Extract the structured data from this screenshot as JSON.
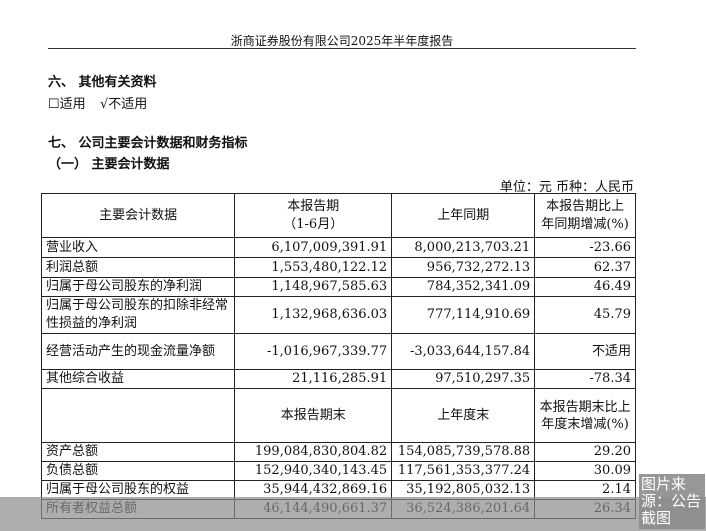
{
  "header": "浙商证券股份有限公司2025年半年度报告",
  "section6": {
    "title": "六、 其他有关资料",
    "opt1": "☐适用",
    "opt2": "√不适用"
  },
  "section7": {
    "title": "七、 公司主要会计数据和财务指标",
    "sub": "（一） 主要会计数据"
  },
  "unit": "单位：元  币种：人民币",
  "table1": {
    "headers": [
      "主要会计数据",
      "本报告期",
      "（1-6月）",
      "上年同期",
      "本报告期比上",
      "年同期增减(%)"
    ],
    "rows": [
      [
        "营业收入",
        "6,107,009,391.91",
        "8,000,213,703.21",
        "-23.66"
      ],
      [
        "利润总额",
        "1,553,480,122.12",
        "956,732,272.13",
        "62.37"
      ],
      [
        "归属于母公司股东的净利润",
        "1,148,967,585.63",
        "784,352,341.09",
        "46.49"
      ],
      [
        "归属于母公司股东的扣除非经常性损益的净利润",
        "1,132,968,636.03",
        "777,114,910.69",
        "45.79"
      ],
      [
        "经营活动产生的现金流量净额",
        "-1,016,967,339.77",
        "-3,033,644,157.84",
        "不适用"
      ],
      [
        "其他综合收益",
        "21,116,285.91",
        "97,510,297.35",
        "-78.34"
      ]
    ]
  },
  "table2": {
    "headers": [
      "本报告期末",
      "上年度末",
      "本报告期末比上年度末增减(%)"
    ],
    "rows": [
      [
        "资产总额",
        "199,084,830,804.82",
        "154,085,739,578.88",
        "29.20"
      ],
      [
        "负债总额",
        "152,940,340,143.45",
        "117,561,353,377.24",
        "30.09"
      ],
      [
        "归属于母公司股东的权益",
        "35,944,432,869.16",
        "35,192,805,032.13",
        "2.14"
      ],
      [
        "所有者权益总额",
        "46,144,490,661.37",
        "36,524,386,201.64",
        "26.34"
      ]
    ]
  },
  "watermark": "图片来源：公告截图"
}
